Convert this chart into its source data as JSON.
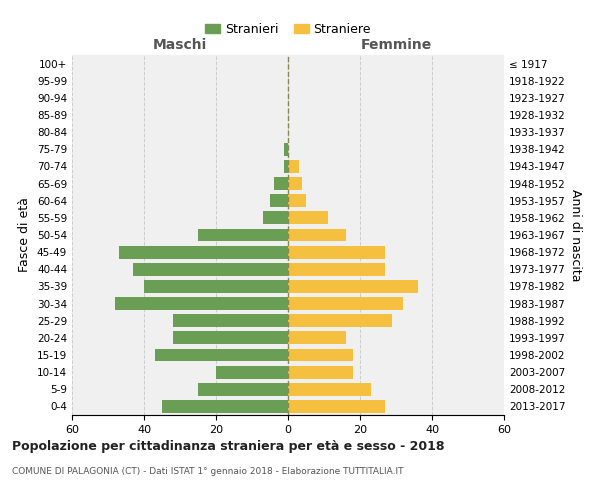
{
  "age_groups": [
    "0-4",
    "5-9",
    "10-14",
    "15-19",
    "20-24",
    "25-29",
    "30-34",
    "35-39",
    "40-44",
    "45-49",
    "50-54",
    "55-59",
    "60-64",
    "65-69",
    "70-74",
    "75-79",
    "80-84",
    "85-89",
    "90-94",
    "95-99",
    "100+"
  ],
  "birth_years": [
    "2013-2017",
    "2008-2012",
    "2003-2007",
    "1998-2002",
    "1993-1997",
    "1988-1992",
    "1983-1987",
    "1978-1982",
    "1973-1977",
    "1968-1972",
    "1963-1967",
    "1958-1962",
    "1953-1957",
    "1948-1952",
    "1943-1947",
    "1938-1942",
    "1933-1937",
    "1928-1932",
    "1923-1927",
    "1918-1922",
    "≤ 1917"
  ],
  "maschi": [
    35,
    25,
    20,
    37,
    32,
    32,
    48,
    40,
    43,
    47,
    25,
    7,
    5,
    4,
    1,
    1,
    0,
    0,
    0,
    0,
    0
  ],
  "femmine": [
    27,
    23,
    18,
    18,
    16,
    29,
    32,
    36,
    27,
    27,
    16,
    11,
    5,
    4,
    3,
    0,
    0,
    0,
    0,
    0,
    0
  ],
  "maschi_color": "#6b9e55",
  "femmine_color": "#f5c040",
  "background_color": "#f0f0f0",
  "grid_color": "#cccccc",
  "title": "Popolazione per cittadinanza straniera per età e sesso - 2018",
  "subtitle": "COMUNE DI PALAGONIA (CT) - Dati ISTAT 1° gennaio 2018 - Elaborazione TUTTITALIA.IT",
  "xlabel_left": "Maschi",
  "xlabel_right": "Femmine",
  "ylabel_left": "Fasce di età",
  "ylabel_right": "Anni di nascita",
  "legend_maschi": "Stranieri",
  "legend_femmine": "Straniere",
  "xlim": 60
}
